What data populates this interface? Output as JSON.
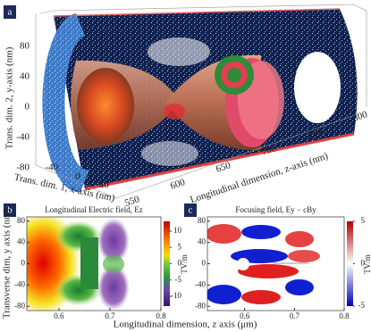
{
  "chart_data": [
    {
      "type": "surface3d",
      "panel_label": "a",
      "xlabel": "Trans. dim. 1, x-axis (nm)",
      "ylabel": "Trans. dim. 2, y-axis (nm)",
      "zlabel": "Longitudinal dimension, z-axis (nm)",
      "xticks": [
        -40,
        0,
        40
      ],
      "yticks": [
        80,
        40,
        0,
        -40,
        -80
      ],
      "zticks": [
        550,
        600,
        650,
        700,
        750,
        800
      ]
    },
    {
      "type": "heatmap",
      "panel_label": "b",
      "title": "Longitudinal Electric field, Ez",
      "ylabel": "Transverse dim, y axis (nm)",
      "xlabel": "Longitudinal dimension, z axis (μm)",
      "xlim": [
        0.537,
        0.8
      ],
      "xticks": [
        0.6,
        0.7,
        0.8
      ],
      "ylim": [
        -88,
        88
      ],
      "yticks": [
        -80,
        -40,
        0,
        40,
        80
      ],
      "clim": [
        -13,
        13
      ],
      "cticks": [
        -10,
        -5,
        0,
        5,
        10
      ],
      "clabel": "TV/m"
    },
    {
      "type": "heatmap",
      "panel_label": "c",
      "title": "Focusing field, Ey − cBy",
      "xlim": [
        0.525,
        0.8
      ],
      "xticks": [
        0.6,
        0.7,
        0.8
      ],
      "ylim": [
        -88,
        88
      ],
      "yticks": [
        -80,
        -40,
        0,
        40,
        80
      ],
      "clim": [
        -5,
        5
      ],
      "cticks": [
        -5,
        0,
        5
      ],
      "clabel": "TV/m"
    }
  ]
}
